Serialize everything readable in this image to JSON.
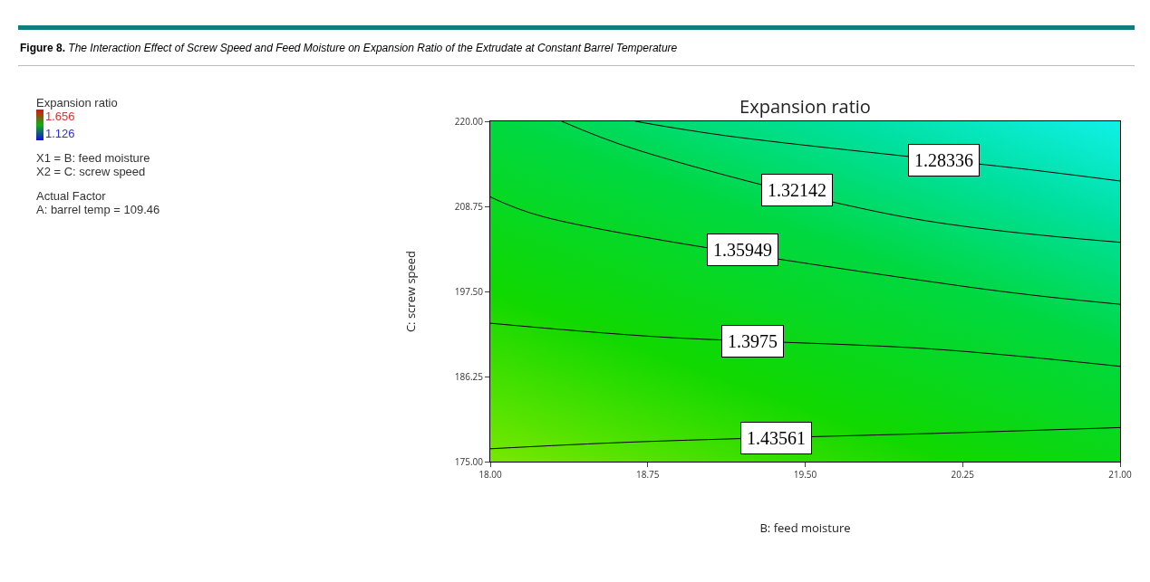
{
  "chart_data": {
    "type": "line",
    "title": "Expansion ratio",
    "xlabel": "B: feed moisture",
    "ylabel": "C: screw speed",
    "annotations": [
      "Figure 8.",
      "The Interaction Effect of Screw Speed and Feed Moisture on Expansion Ratio of the Extrudate at Constant Barrel Temperature",
      "Expansion ratio",
      "1.656",
      "1.126",
      "X1 = B: feed moisture",
      "X2 = C: screw speed",
      "Actual Factor",
      "A: barrel temp = 109.46"
    ],
    "xlim": [
      18,
      21
    ],
    "ylim": [
      175,
      220
    ],
    "xticks": [
      {
        "value": 18,
        "label": "18.00"
      },
      {
        "value": 18.75,
        "label": "18.75"
      },
      {
        "value": 19.5,
        "label": "19.50"
      },
      {
        "value": 20.25,
        "label": "20.25"
      },
      {
        "value": 21,
        "label": "21.00"
      }
    ],
    "yticks": [
      {
        "value": 175,
        "label": "175.00"
      },
      {
        "value": 186.25,
        "label": "186.25"
      },
      {
        "value": 197.5,
        "label": "197.50"
      },
      {
        "value": 208.75,
        "label": "208.75"
      },
      {
        "value": 220,
        "label": "220.00"
      }
    ],
    "grid": false,
    "legend": false,
    "marker": "none",
    "line_style": "solid",
    "series": [
      {
        "name": "1.28336",
        "color": "#000000",
        "x": [
          18.69,
          19.12,
          20.16,
          20.6,
          21
        ],
        "values": [
          220,
          218.1,
          null,
          213.5,
          212.1
        ]
      },
      {
        "name": "1.32142",
        "color": "#000000",
        "x": [
          18.34,
          18.69,
          19.46,
          19.98,
          21
        ],
        "values": [
          220,
          216.3,
          null,
          207.3,
          204.0
        ]
      },
      {
        "name": "1.35949",
        "color": "#000000",
        "x": [
          18,
          18.25,
          19.2,
          20.3,
          21
        ],
        "values": [
          210.0,
          207.4,
          null,
          198.0,
          195.8
        ]
      },
      {
        "name": "1.3975",
        "color": "#000000",
        "x": [
          18,
          18.8,
          19.25,
          20.1,
          21
        ],
        "values": [
          193.3,
          191.5,
          null,
          189.9,
          187.6
        ]
      },
      {
        "name": "1.43561",
        "color": "#000000",
        "x": [
          18,
          18.69,
          19.36,
          20.2,
          21
        ],
        "values": [
          176.7,
          177.6,
          null,
          178.8,
          179.5
        ]
      }
    ]
  }
}
